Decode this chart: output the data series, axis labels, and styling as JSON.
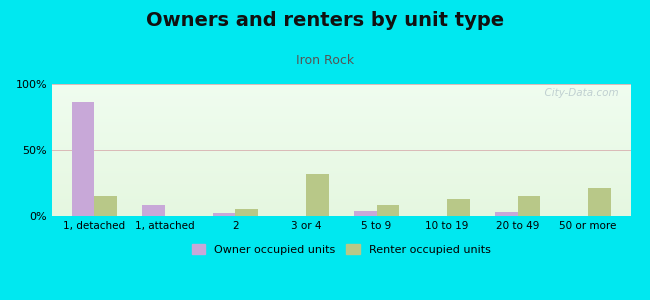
{
  "title": "Owners and renters by unit type",
  "subtitle": "Iron Rock",
  "categories": [
    "1, detached",
    "1, attached",
    "2",
    "3 or 4",
    "5 to 9",
    "10 to 19",
    "20 to 49",
    "50 or more"
  ],
  "owner_values": [
    86,
    8,
    2,
    0,
    4,
    0,
    3,
    0
  ],
  "renter_values": [
    15,
    0,
    5,
    32,
    8,
    13,
    15,
    21
  ],
  "owner_color": "#c8a8d8",
  "renter_color": "#b8c888",
  "bg_outer": "#00e8f0",
  "ylim": [
    0,
    100
  ],
  "yticks": [
    0,
    50,
    100
  ],
  "ytick_labels": [
    "0%",
    "50%",
    "100%"
  ],
  "watermark": "  City-Data.com",
  "legend_owner": "Owner occupied units",
  "legend_renter": "Renter occupied units",
  "title_fontsize": 14,
  "subtitle_fontsize": 9,
  "bar_width": 0.32
}
